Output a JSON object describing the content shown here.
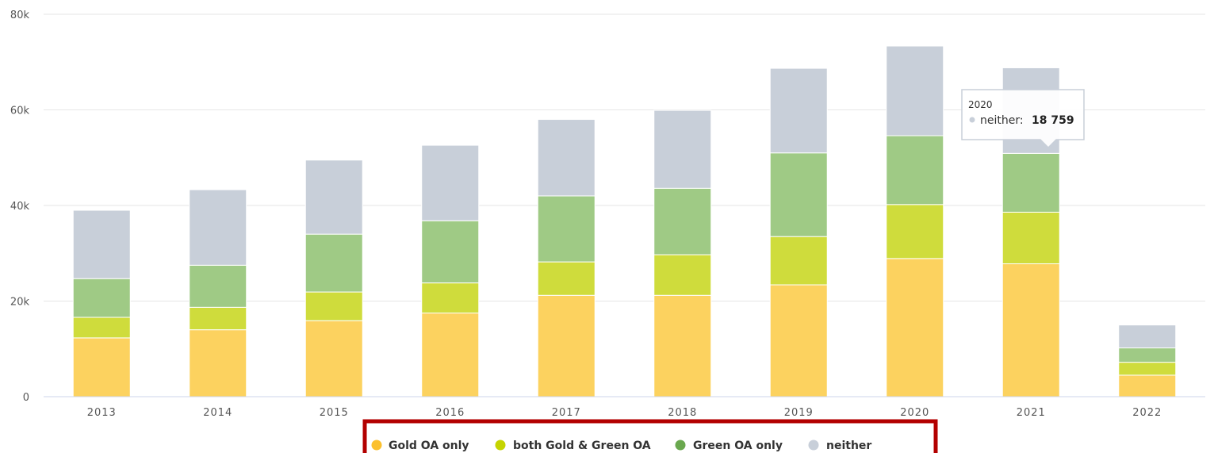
{
  "chart_data": {
    "type": "bar",
    "stacked": true,
    "categories": [
      "2013",
      "2014",
      "2015",
      "2016",
      "2017",
      "2018",
      "2019",
      "2020",
      "2021",
      "2022"
    ],
    "series": [
      {
        "name": "Gold OA only",
        "color": "#fcd25f",
        "values": [
          12300,
          14000,
          15900,
          17500,
          21200,
          21200,
          23400,
          28900,
          27800,
          4500
        ]
      },
      {
        "name": "both Gold & Green OA",
        "color": "#cfdc3c",
        "values": [
          4300,
          4700,
          6000,
          6300,
          7000,
          8500,
          10100,
          11300,
          10800,
          2700
        ]
      },
      {
        "name": "Green OA only",
        "color": "#9fca85",
        "values": [
          8100,
          8800,
          12100,
          13000,
          13800,
          13900,
          17500,
          14400,
          12300,
          3000
        ]
      },
      {
        "name": "neither",
        "color": "#c8cfd9",
        "values": [
          14300,
          15800,
          15500,
          15800,
          16000,
          16300,
          17700,
          18759,
          17900,
          4800
        ]
      }
    ],
    "ylim": [
      0,
      80000
    ],
    "yticks": [
      0,
      20000,
      40000,
      60000,
      80000
    ],
    "ytick_labels": [
      "0",
      "20k",
      "40k",
      "60k",
      "80k"
    ],
    "grid": true,
    "legend_position": "bottom",
    "legend_marker_colors": [
      "#fbc02d",
      "#c5d400",
      "#6aa84f",
      "#c8cfd9"
    ],
    "tooltip": {
      "category": "2020",
      "title": "2020",
      "series": "neither",
      "label": "neither:",
      "value": "18 759"
    }
  }
}
